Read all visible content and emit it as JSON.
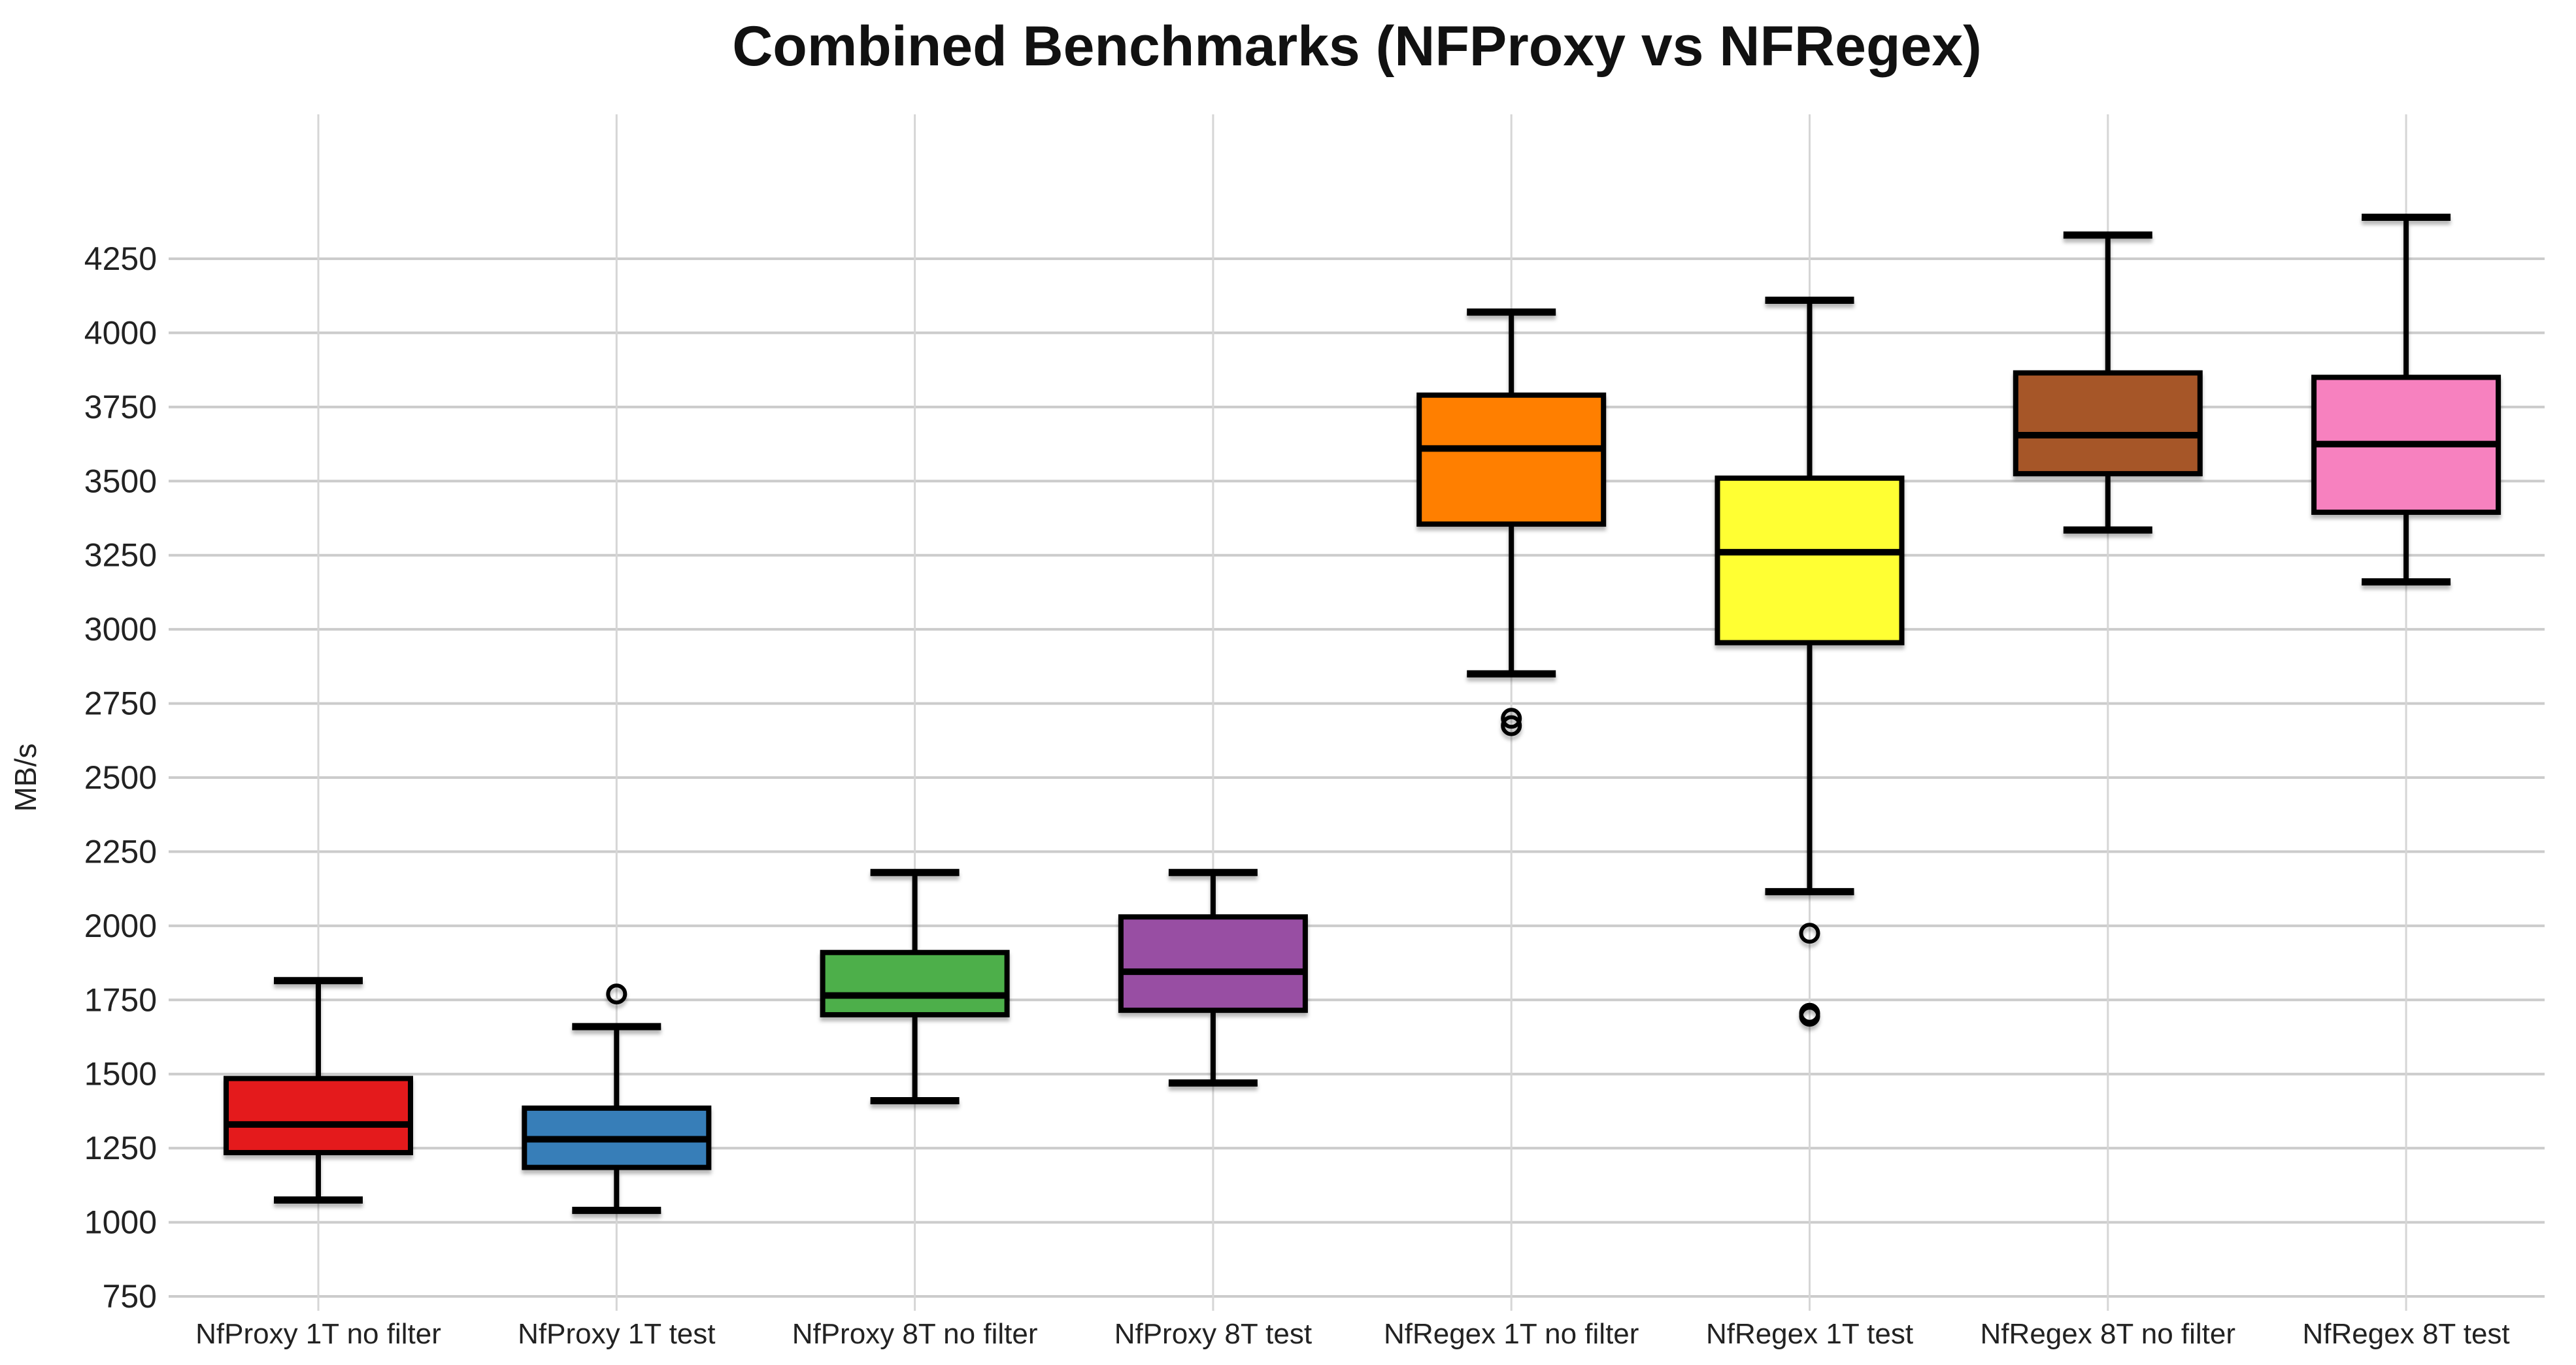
{
  "title": "Combined Benchmarks (NFProxy vs NFRegex)",
  "y_axis": {
    "label": "MB/s",
    "min": 750,
    "max": 4250,
    "tick_step": 250,
    "ticks": [
      750,
      1000,
      1250,
      1500,
      1750,
      2000,
      2250,
      2500,
      2750,
      3000,
      3250,
      3500,
      3750,
      4000,
      4250
    ]
  },
  "chart_data": {
    "type": "boxplot",
    "title": "Combined Benchmarks (NFProxy vs NFRegex)",
    "xlabel": "",
    "ylabel": "MB/s",
    "ylim": [
      750,
      4450
    ],
    "grid": true,
    "categories": [
      "NfProxy 1T no filter",
      "NfProxy 1T test",
      "NfProxy 8T no filter",
      "NfProxy 8T test",
      "NfRegex 1T no filter",
      "NfRegex 1T test",
      "NfRegex 8T no filter",
      "NfRegex 8T test"
    ],
    "series": [
      {
        "label": "NfProxy 1T no filter",
        "color": "#e41a1c",
        "whisker_low": 1075,
        "q1": 1235,
        "median": 1330,
        "q3": 1485,
        "whisker_high": 1815,
        "outliers": []
      },
      {
        "label": "NfProxy 1T test",
        "color": "#377eb8",
        "whisker_low": 1040,
        "q1": 1185,
        "median": 1280,
        "q3": 1385,
        "whisker_high": 1660,
        "outliers": [
          1770
        ]
      },
      {
        "label": "NfProxy 8T no filter",
        "color": "#4daf4a",
        "whisker_low": 1410,
        "q1": 1700,
        "median": 1765,
        "q3": 1910,
        "whisker_high": 2180,
        "outliers": []
      },
      {
        "label": "NfProxy 8T test",
        "color": "#984ea3",
        "whisker_low": 1470,
        "q1": 1715,
        "median": 1845,
        "q3": 2030,
        "whisker_high": 2180,
        "outliers": []
      },
      {
        "label": "NfRegex 1T no filter",
        "color": "#ff7f00",
        "whisker_low": 2850,
        "q1": 3355,
        "median": 3610,
        "q3": 3790,
        "whisker_high": 4070,
        "outliers": [
          2700,
          2675
        ]
      },
      {
        "label": "NfRegex 1T test",
        "color": "#ffff33",
        "whisker_low": 2115,
        "q1": 2955,
        "median": 3260,
        "q3": 3510,
        "whisker_high": 4110,
        "outliers": [
          1975,
          1705,
          1695
        ]
      },
      {
        "label": "NfRegex 8T no filter",
        "color": "#a65628",
        "whisker_low": 3335,
        "q1": 3525,
        "median": 3655,
        "q3": 3865,
        "whisker_high": 4330,
        "outliers": []
      },
      {
        "label": "NfRegex 8T test",
        "color": "#f781bf",
        "whisker_low": 3160,
        "q1": 3395,
        "median": 3625,
        "q3": 3850,
        "whisker_high": 4390,
        "outliers": []
      }
    ]
  }
}
